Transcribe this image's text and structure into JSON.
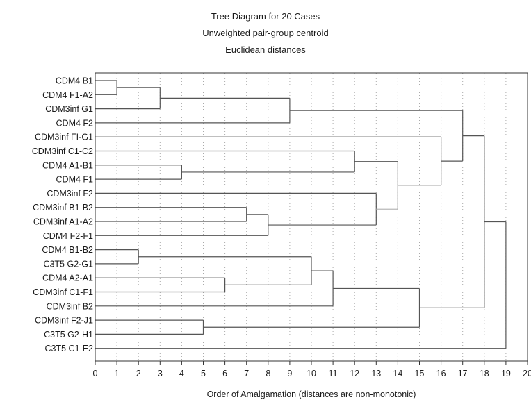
{
  "chart_data": {
    "type": "dendrogram",
    "title": [
      "Tree Diagram for 20 Cases",
      "Unweighted pair-group centroid",
      "Euclidean distances"
    ],
    "xlabel": "Order of Amalgamation (distances are non-monotonic)",
    "xlim": [
      0,
      20
    ],
    "xticks": [
      0,
      1,
      2,
      3,
      4,
      5,
      6,
      7,
      8,
      9,
      10,
      11,
      12,
      13,
      14,
      15,
      16,
      17,
      18,
      19,
      20
    ],
    "grid": true,
    "leaves": [
      "CDM4 B1",
      "CDM4 F1-A2",
      "CDM3inf G1",
      "CDM4 F2",
      "CDM3inf FI-G1",
      "CDM3inf C1-C2",
      "CDM4 A1-B1",
      "CDM4 F1",
      "CDM3inf F2",
      "CDM3inf B1-B2",
      "CDM3inf A1-A2",
      "CDM4 F2-F1",
      "CDM4 B1-B2",
      "C3T5 G2-G1",
      "CDM4 A2-A1",
      "CDM3inf C1-F1",
      "CDM3inf B2",
      "CDM3inf F2-J1",
      "C3T5 G2-H1",
      "C3T5 C1-E2"
    ],
    "merges": [
      {
        "id": "m1",
        "a": "L0",
        "b": "L1",
        "x": 1
      },
      {
        "id": "m2",
        "a": "L12",
        "b": "L13",
        "x": 2
      },
      {
        "id": "m3",
        "a": "m1",
        "b": "L2",
        "x": 3
      },
      {
        "id": "m4",
        "a": "L6",
        "b": "L7",
        "x": 4
      },
      {
        "id": "m5",
        "a": "L17",
        "b": "L18",
        "x": 5
      },
      {
        "id": "m6",
        "a": "L14",
        "b": "L15",
        "x": 6
      },
      {
        "id": "m7",
        "a": "L9",
        "b": "L10",
        "x": 7
      },
      {
        "id": "m8",
        "a": "m7",
        "b": "L11",
        "x": 8
      },
      {
        "id": "m9",
        "a": "m3",
        "b": "L3",
        "x": 9
      },
      {
        "id": "m10",
        "a": "m2",
        "b": "m6",
        "x": 10
      },
      {
        "id": "m11",
        "a": "m10",
        "b": "L16",
        "x": 11
      },
      {
        "id": "m12",
        "a": "L5",
        "b": "m4",
        "x": 12
      },
      {
        "id": "m13",
        "a": "L8",
        "b": "m8",
        "x": 13
      },
      {
        "id": "m14",
        "a": "m12",
        "b": "m13",
        "x": 14
      },
      {
        "id": "m15",
        "a": "m11",
        "b": "m5",
        "x": 15
      },
      {
        "id": "m16",
        "a": "L4",
        "b": "m14",
        "x": 16
      },
      {
        "id": "m17",
        "a": "m9",
        "b": "m16",
        "x": 17
      },
      {
        "id": "m18",
        "a": "m17",
        "b": "m15",
        "x": 18
      },
      {
        "id": "m19",
        "a": "m18",
        "b": "L19",
        "x": 19
      }
    ]
  }
}
